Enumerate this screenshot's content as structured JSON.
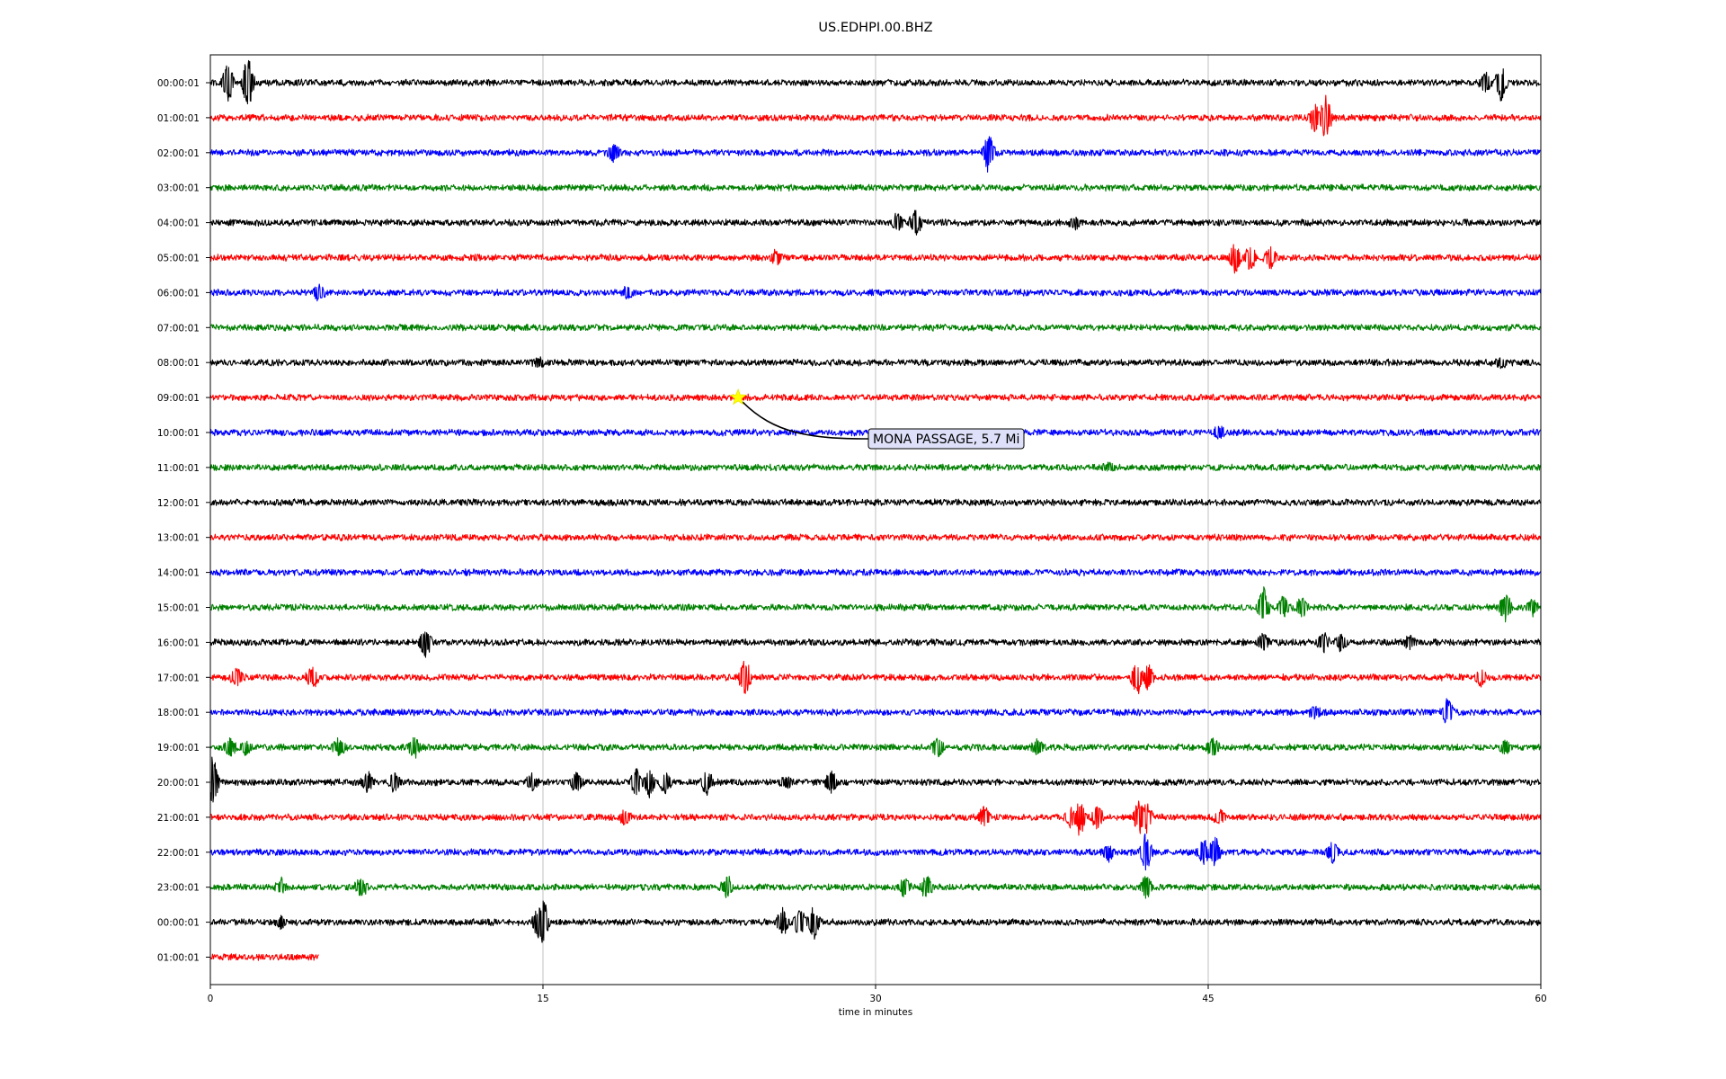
{
  "chart_data": {
    "type": "line",
    "title": "US.EDHPI.00.BHZ",
    "xlabel": "time in minutes",
    "ylabel": "",
    "xlim": [
      0,
      60
    ],
    "x_ticks": [
      "0",
      "15",
      "30",
      "45",
      "60"
    ],
    "x_tick_values": [
      0,
      15,
      30,
      45,
      60
    ],
    "grid": "vertical lines at x ticks",
    "trace_colors": [
      "#000000",
      "#ff0000",
      "#0000ff",
      "#008000"
    ],
    "rows": [
      {
        "label": "00:00:01",
        "color": "#000000",
        "end_min": 60,
        "events": [
          [
            0.8,
            22
          ],
          [
            1.7,
            30
          ],
          [
            57.5,
            12
          ],
          [
            58.2,
            20
          ]
        ]
      },
      {
        "label": "01:00:01",
        "color": "#ff0000",
        "end_min": 60,
        "events": [
          [
            49.8,
            15
          ],
          [
            50.3,
            24
          ]
        ]
      },
      {
        "label": "02:00:01",
        "color": "#0000ff",
        "end_min": 60,
        "events": [
          [
            18.2,
            10
          ],
          [
            35.1,
            22
          ]
        ]
      },
      {
        "label": "03:00:01",
        "color": "#008000",
        "end_min": 60,
        "events": []
      },
      {
        "label": "04:00:01",
        "color": "#000000",
        "end_min": 60,
        "events": [
          [
            31.0,
            12
          ],
          [
            31.8,
            14
          ],
          [
            39.0,
            6
          ]
        ]
      },
      {
        "label": "05:00:01",
        "color": "#ff0000",
        "end_min": 60,
        "events": [
          [
            25.5,
            8
          ],
          [
            46.2,
            16
          ],
          [
            46.9,
            14
          ],
          [
            47.8,
            12
          ]
        ]
      },
      {
        "label": "06:00:01",
        "color": "#0000ff",
        "end_min": 60,
        "events": [
          [
            4.9,
            10
          ],
          [
            18.8,
            6
          ]
        ]
      },
      {
        "label": "07:00:01",
        "color": "#008000",
        "end_min": 60,
        "events": []
      },
      {
        "label": "08:00:01",
        "color": "#000000",
        "end_min": 60,
        "events": [
          [
            14.8,
            5
          ],
          [
            58.2,
            6
          ]
        ]
      },
      {
        "label": "09:00:01",
        "color": "#ff0000",
        "end_min": 60,
        "events": []
      },
      {
        "label": "10:00:01",
        "color": "#0000ff",
        "end_min": 60,
        "events": [
          [
            45.5,
            6
          ]
        ]
      },
      {
        "label": "11:00:01",
        "color": "#008000",
        "end_min": 60,
        "events": [
          [
            40.5,
            5
          ]
        ]
      },
      {
        "label": "12:00:01",
        "color": "#000000",
        "end_min": 60,
        "events": []
      },
      {
        "label": "13:00:01",
        "color": "#ff0000",
        "end_min": 60,
        "events": []
      },
      {
        "label": "14:00:01",
        "color": "#0000ff",
        "end_min": 60,
        "events": []
      },
      {
        "label": "15:00:01",
        "color": "#008000",
        "end_min": 60,
        "events": [
          [
            47.5,
            22
          ],
          [
            48.4,
            12
          ],
          [
            49.2,
            12
          ],
          [
            58.4,
            16
          ],
          [
            59.6,
            10
          ]
        ]
      },
      {
        "label": "16:00:01",
        "color": "#000000",
        "end_min": 60,
        "events": [
          [
            9.7,
            18
          ],
          [
            47.5,
            10
          ],
          [
            50.2,
            10
          ],
          [
            51.0,
            10
          ],
          [
            54.1,
            8
          ]
        ]
      },
      {
        "label": "17:00:01",
        "color": "#ff0000",
        "end_min": 60,
        "events": [
          [
            1.2,
            10
          ],
          [
            4.6,
            12
          ],
          [
            24.1,
            22
          ],
          [
            41.8,
            22
          ],
          [
            42.3,
            14
          ],
          [
            57.3,
            10
          ]
        ]
      },
      {
        "label": "18:00:01",
        "color": "#0000ff",
        "end_min": 60,
        "events": [
          [
            49.8,
            6
          ],
          [
            55.8,
            16
          ]
        ]
      },
      {
        "label": "19:00:01",
        "color": "#008000",
        "end_min": 60,
        "events": [
          [
            0.9,
            10
          ],
          [
            1.6,
            8
          ],
          [
            5.8,
            10
          ],
          [
            9.2,
            12
          ],
          [
            32.8,
            12
          ],
          [
            37.3,
            8
          ],
          [
            45.2,
            10
          ],
          [
            58.4,
            8
          ]
        ]
      },
      {
        "label": "20:00:01",
        "color": "#000000",
        "end_min": 60,
        "events": [
          [
            0.1,
            30
          ],
          [
            7.1,
            10
          ],
          [
            8.3,
            10
          ],
          [
            14.5,
            10
          ],
          [
            16.5,
            12
          ],
          [
            19.2,
            16
          ],
          [
            19.8,
            16
          ],
          [
            20.5,
            12
          ],
          [
            22.4,
            14
          ],
          [
            26.0,
            8
          ],
          [
            28.0,
            12
          ]
        ]
      },
      {
        "label": "21:00:01",
        "color": "#ff0000",
        "end_min": 60,
        "events": [
          [
            18.7,
            8
          ],
          [
            34.9,
            12
          ],
          [
            38.8,
            10
          ],
          [
            39.2,
            20
          ],
          [
            40.0,
            12
          ],
          [
            41.9,
            22
          ],
          [
            42.2,
            16
          ],
          [
            45.5,
            8
          ]
        ]
      },
      {
        "label": "22:00:01",
        "color": "#0000ff",
        "end_min": 60,
        "events": [
          [
            40.5,
            10
          ],
          [
            42.2,
            22
          ],
          [
            44.8,
            14
          ],
          [
            45.3,
            18
          ],
          [
            50.6,
            12
          ]
        ]
      },
      {
        "label": "23:00:01",
        "color": "#008000",
        "end_min": 60,
        "events": [
          [
            3.2,
            8
          ],
          [
            6.8,
            10
          ],
          [
            23.3,
            12
          ],
          [
            31.3,
            12
          ],
          [
            32.3,
            12
          ],
          [
            42.2,
            14
          ]
        ]
      },
      {
        "label": "00:00:01",
        "color": "#000000",
        "end_min": 60,
        "events": [
          [
            3.2,
            6
          ],
          [
            14.8,
            18
          ],
          [
            15.0,
            26
          ],
          [
            25.8,
            16
          ],
          [
            26.6,
            18
          ],
          [
            27.2,
            20
          ]
        ]
      },
      {
        "label": "01:00:01",
        "color": "#ff0000",
        "end_min": 4.9,
        "events": []
      }
    ],
    "annotation": {
      "text": "MONA PASSAGE, 5.7 Mi",
      "row": 9,
      "x_minute": 23.8,
      "marker": "star",
      "marker_color": "#ffff00",
      "box_color": "#dde0f8"
    }
  }
}
